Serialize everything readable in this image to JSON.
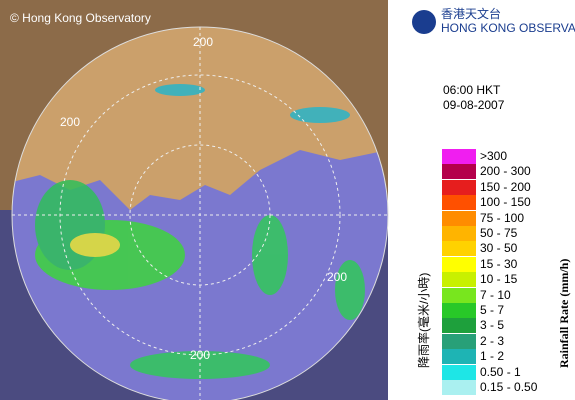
{
  "header": {
    "copyright": "© Hong Kong Observatory",
    "logo_chinese": "香港天文台",
    "logo_english": "HONG KONG OBSERVATORY"
  },
  "time": "06:00 HKT",
  "date": "09-08-2007",
  "ring_labels": [
    "200",
    "200",
    "200",
    "200"
  ],
  "legend": {
    "title_chinese": "降雨率(毫米/小時)",
    "title_english": "Rainfall Rate (mm/h)",
    "labels": [
      ">300",
      "200 - 300",
      "150 - 200",
      "100 - 150",
      "75 - 100",
      "50 - 75",
      "30 - 50",
      "15 - 30",
      "10 - 15",
      "7 - 10",
      "5 - 7",
      "3 - 5",
      "2 - 3",
      "1 - 2",
      "0.50 - 1",
      "0.15 - 0.50"
    ]
  }
}
